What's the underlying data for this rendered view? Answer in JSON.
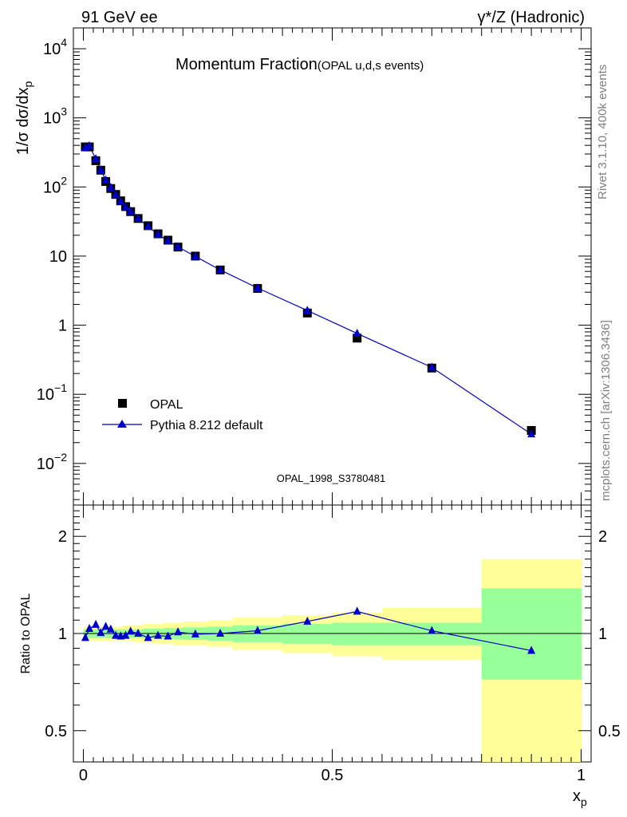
{
  "header": {
    "left": "91 GeV ee",
    "right": "γ*/Z (Hadronic)"
  },
  "side_labels": {
    "top": "Rivet 3.1.10,  400k events",
    "bottom": "mcplots.cern.ch [arXiv:1306.3436]"
  },
  "colors": {
    "data": "#000000",
    "mc": "#0000cc",
    "band_inner": "#99ff99",
    "band_outer": "#ffff99",
    "watermark": "#a0a0a0"
  },
  "chart_data": [
    {
      "type": "scatter",
      "title": "Momentum Fraction",
      "subtitle": "(OPAL u,d,s events)",
      "watermark": "OPAL_1998_S3780481",
      "ylabel_html": "1/σ dσ/dx",
      "ylabel_sub": "p",
      "yscale": "log",
      "ylim": [
        0.0025,
        20000
      ],
      "xlim": [
        -0.02,
        1.02
      ],
      "y_ticks": [
        {
          "v": 0.01,
          "base": "10",
          "exp": "−2"
        },
        {
          "v": 0.1,
          "base": "10",
          "exp": "−1"
        },
        {
          "v": 1,
          "base": "1",
          "exp": ""
        },
        {
          "v": 10,
          "base": "10",
          "exp": ""
        },
        {
          "v": 100,
          "base": "10",
          "exp": "2"
        },
        {
          "v": 1000,
          "base": "10",
          "exp": "3"
        },
        {
          "v": 10000,
          "base": "10",
          "exp": "4"
        }
      ],
      "legend": {
        "placement": "lower-left",
        "entries": [
          "OPAL",
          "Pythia 8.212 default"
        ]
      },
      "series": [
        {
          "name": "OPAL",
          "marker": "square",
          "x": [
            0.004,
            0.012,
            0.025,
            0.035,
            0.045,
            0.055,
            0.065,
            0.075,
            0.085,
            0.095,
            0.11,
            0.13,
            0.15,
            0.17,
            0.19,
            0.225,
            0.275,
            0.35,
            0.45,
            0.55,
            0.7,
            0.9
          ],
          "y": [
            380,
            380,
            240,
            175,
            120,
            95,
            78,
            63,
            52,
            44,
            35,
            27.5,
            21,
            17,
            13.5,
            10,
            6.3,
            3.4,
            1.5,
            0.65,
            0.24,
            0.03
          ]
        },
        {
          "name": "Pythia 8.212 default",
          "marker": "triangle",
          "x": [
            0.004,
            0.012,
            0.025,
            0.035,
            0.045,
            0.055,
            0.065,
            0.075,
            0.085,
            0.095,
            0.11,
            0.13,
            0.15,
            0.17,
            0.19,
            0.225,
            0.275,
            0.35,
            0.45,
            0.55,
            0.7,
            0.9
          ],
          "y": [
            368,
            393,
            255,
            176,
            126,
            98,
            76.5,
            61.5,
            51,
            44.4,
            35,
            26.7,
            20.6,
            16.5,
            13.6,
            9.9,
            6.3,
            3.45,
            1.63,
            0.76,
            0.245,
            0.0265
          ]
        }
      ]
    },
    {
      "type": "scatter",
      "ylabel": "Ratio to OPAL",
      "xlabel_base": "x",
      "xlabel_sub": "p",
      "yscale": "log",
      "ylim": [
        0.4,
        2.5
      ],
      "xlim": [
        -0.02,
        1.02
      ],
      "y_ticks": [
        0.5,
        1,
        2
      ],
      "y_tick_labels": [
        "0.5",
        "1",
        "2"
      ],
      "x_ticks": [
        0,
        0.5,
        1
      ],
      "x_tick_labels": [
        "0",
        "0.5",
        "1"
      ],
      "bands": {
        "edges": [
          0,
          0.008,
          0.016,
          0.03,
          0.04,
          0.05,
          0.06,
          0.07,
          0.08,
          0.09,
          0.1,
          0.12,
          0.14,
          0.16,
          0.18,
          0.2,
          0.25,
          0.3,
          0.4,
          0.5,
          0.6,
          0.8,
          1.0
        ],
        "inner_lo": [
          0.97,
          0.97,
          0.97,
          0.97,
          0.97,
          0.97,
          0.97,
          0.97,
          0.97,
          0.97,
          0.97,
          0.965,
          0.965,
          0.96,
          0.96,
          0.955,
          0.95,
          0.94,
          0.93,
          0.92,
          0.92,
          0.72
        ],
        "inner_hi": [
          1.03,
          1.03,
          1.03,
          1.03,
          1.03,
          1.03,
          1.03,
          1.03,
          1.03,
          1.03,
          1.03,
          1.035,
          1.035,
          1.04,
          1.04,
          1.045,
          1.05,
          1.06,
          1.07,
          1.08,
          1.08,
          1.38
        ],
        "outer_lo": [
          0.95,
          0.95,
          0.95,
          0.95,
          0.95,
          0.95,
          0.95,
          0.95,
          0.95,
          0.95,
          0.94,
          0.94,
          0.93,
          0.93,
          0.92,
          0.92,
          0.91,
          0.89,
          0.87,
          0.85,
          0.83,
          0.35
        ],
        "outer_hi": [
          1.05,
          1.05,
          1.05,
          1.05,
          1.05,
          1.05,
          1.05,
          1.05,
          1.06,
          1.06,
          1.06,
          1.07,
          1.07,
          1.08,
          1.08,
          1.09,
          1.1,
          1.12,
          1.14,
          1.16,
          1.2,
          1.7
        ]
      },
      "series": [
        {
          "name": "Pythia 8.212 default",
          "x": [
            0.004,
            0.012,
            0.025,
            0.035,
            0.045,
            0.055,
            0.065,
            0.075,
            0.085,
            0.095,
            0.11,
            0.13,
            0.15,
            0.17,
            0.19,
            0.225,
            0.275,
            0.35,
            0.45,
            0.55,
            0.7,
            0.9
          ],
          "y": [
            0.97,
            1.035,
            1.065,
            1.005,
            1.05,
            1.03,
            0.985,
            0.98,
            0.985,
            1.015,
            1.0,
            0.97,
            0.985,
            0.98,
            1.01,
            0.995,
            1.0,
            1.02,
            1.09,
            1.17,
            1.02,
            0.885
          ]
        }
      ]
    }
  ]
}
